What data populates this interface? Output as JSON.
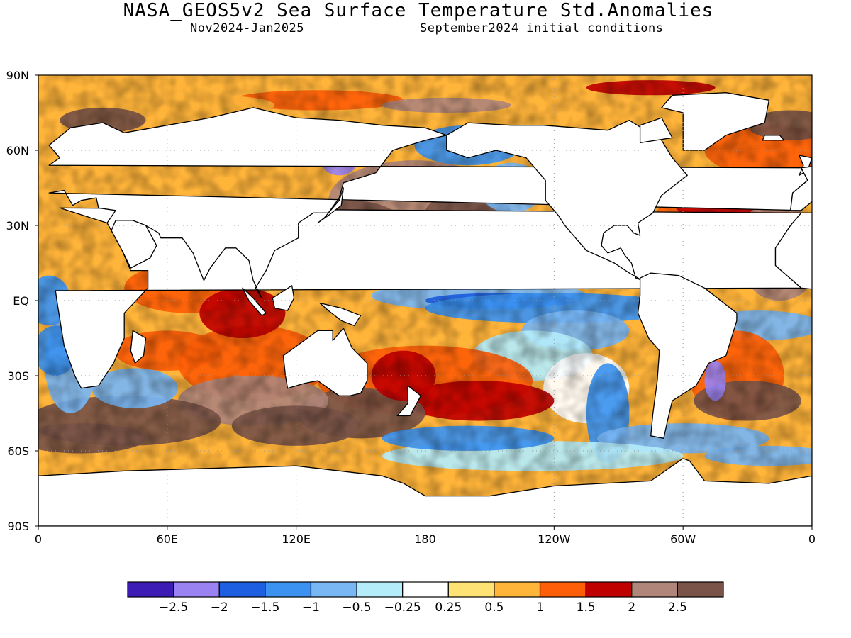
{
  "header": {
    "title": "NASA_GEOS5v2 Sea Surface Temperature Std.Anomalies",
    "subtitle_left": "Nov2024-Jan2025",
    "subtitle_right": "September2024 initial conditions"
  },
  "map": {
    "lat_labels": [
      "90N",
      "60N",
      "30N",
      "EQ",
      "30S",
      "60S",
      "90S"
    ],
    "lon_labels": [
      "0",
      "60E",
      "120E",
      "180",
      "120W",
      "60W",
      "0"
    ],
    "colors": {
      "land": "#ffffff",
      "coastline": "#000000",
      "grid": "#9a9a9a"
    }
  },
  "colorbar": {
    "colors": [
      "#3c1cb4",
      "#9a82f2",
      "#1e5ee0",
      "#3c92f0",
      "#78b6f4",
      "#b4ecfa",
      "#ffffff",
      "#ffe274",
      "#ffb43a",
      "#fe5e08",
      "#c00000",
      "#b0857a",
      "#7a5448"
    ],
    "labels": [
      "-2.5",
      "-2",
      "-1.5",
      "-1",
      "-0.5",
      "-0.25",
      "0.25",
      "0.5",
      "1",
      "1.5",
      "2",
      "2.5"
    ]
  }
}
